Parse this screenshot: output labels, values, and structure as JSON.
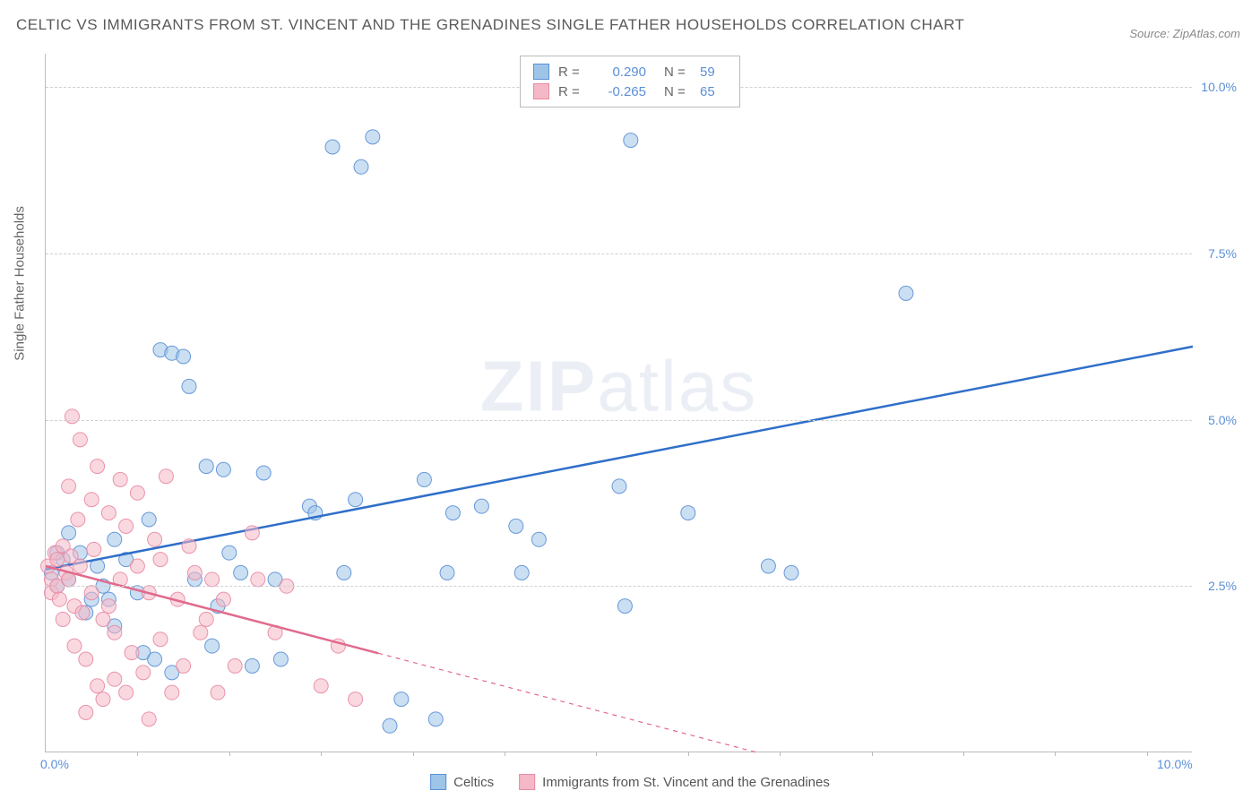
{
  "title": "CELTIC VS IMMIGRANTS FROM ST. VINCENT AND THE GRENADINES SINGLE FATHER HOUSEHOLDS CORRELATION CHART",
  "source_label": "Source: ZipAtlas.com",
  "y_axis_title": "Single Father Households",
  "watermark": {
    "prefix": "ZIP",
    "suffix": "atlas"
  },
  "chart": {
    "type": "scatter",
    "xlim": [
      0,
      10
    ],
    "ylim": [
      0,
      10.5
    ],
    "x_tick_labels": [
      {
        "x": 0,
        "label": "0.0%"
      },
      {
        "x": 10,
        "label": "10.0%"
      }
    ],
    "x_tick_marks": [
      0.8,
      1.6,
      2.4,
      3.2,
      4.0,
      4.8,
      5.6,
      6.4,
      7.2,
      8.0,
      8.8,
      9.6
    ],
    "y_tick_labels": [
      {
        "y": 2.5,
        "label": "2.5%"
      },
      {
        "y": 5.0,
        "label": "5.0%"
      },
      {
        "y": 7.5,
        "label": "7.5%"
      },
      {
        "y": 10.0,
        "label": "10.0%"
      }
    ],
    "grid_color": "#e0e0e0",
    "background_color": "#ffffff",
    "marker_radius": 8,
    "marker_opacity": 0.55,
    "marker_stroke_opacity": 0.9,
    "trend_line_width": 2.5,
    "series": [
      {
        "name": "Celtics",
        "color_fill": "#9ec5e8",
        "color_stroke": "#5b8fd6",
        "trend_color": "#2f6fc9",
        "r_value": "0.290",
        "n_value": "59",
        "trend": {
          "x1": 0,
          "y1": 2.75,
          "x2": 10,
          "y2": 6.1,
          "dashed_from_x": null
        },
        "points": [
          [
            0.05,
            2.7
          ],
          [
            0.1,
            3.0
          ],
          [
            0.1,
            2.5
          ],
          [
            0.15,
            2.9
          ],
          [
            0.2,
            2.6
          ],
          [
            0.2,
            3.3
          ],
          [
            0.3,
            3.0
          ],
          [
            0.35,
            2.1
          ],
          [
            0.4,
            2.3
          ],
          [
            0.45,
            2.8
          ],
          [
            0.5,
            2.5
          ],
          [
            0.55,
            2.3
          ],
          [
            0.6,
            3.2
          ],
          [
            0.7,
            2.9
          ],
          [
            0.8,
            2.4
          ],
          [
            0.85,
            1.5
          ],
          [
            0.9,
            3.5
          ],
          [
            1.0,
            6.05
          ],
          [
            1.1,
            6.0
          ],
          [
            1.2,
            5.95
          ],
          [
            1.25,
            5.5
          ],
          [
            1.3,
            2.6
          ],
          [
            1.4,
            4.3
          ],
          [
            1.5,
            2.2
          ],
          [
            1.55,
            4.25
          ],
          [
            1.6,
            3.0
          ],
          [
            1.7,
            2.7
          ],
          [
            1.8,
            1.3
          ],
          [
            1.9,
            4.2
          ],
          [
            2.0,
            2.6
          ],
          [
            2.05,
            1.4
          ],
          [
            2.3,
            3.7
          ],
          [
            2.35,
            3.6
          ],
          [
            2.5,
            9.1
          ],
          [
            2.6,
            2.7
          ],
          [
            2.7,
            3.8
          ],
          [
            2.75,
            8.8
          ],
          [
            2.85,
            9.25
          ],
          [
            3.0,
            0.4
          ],
          [
            3.1,
            0.8
          ],
          [
            3.3,
            4.1
          ],
          [
            3.4,
            0.5
          ],
          [
            3.5,
            2.7
          ],
          [
            3.55,
            3.6
          ],
          [
            3.8,
            3.7
          ],
          [
            4.1,
            3.4
          ],
          [
            4.15,
            2.7
          ],
          [
            4.3,
            3.2
          ],
          [
            5.0,
            4.0
          ],
          [
            5.05,
            2.2
          ],
          [
            5.1,
            9.2
          ],
          [
            5.6,
            3.6
          ],
          [
            6.3,
            2.8
          ],
          [
            6.5,
            2.7
          ],
          [
            7.5,
            6.9
          ],
          [
            0.6,
            1.9
          ],
          [
            0.95,
            1.4
          ],
          [
            1.1,
            1.2
          ],
          [
            1.45,
            1.6
          ]
        ]
      },
      {
        "name": "Immigrants from St. Vincent and the Grenadines",
        "color_fill": "#f5b8c6",
        "color_stroke": "#e88aa3",
        "trend_color": "#e06a8c",
        "r_value": "-0.265",
        "n_value": "65",
        "trend": {
          "x1": 0,
          "y1": 2.8,
          "x2": 6.2,
          "y2": 0,
          "dashed_from_x": 2.9
        },
        "points": [
          [
            0.02,
            2.8
          ],
          [
            0.05,
            2.6
          ],
          [
            0.05,
            2.4
          ],
          [
            0.08,
            3.0
          ],
          [
            0.1,
            2.9
          ],
          [
            0.1,
            2.5
          ],
          [
            0.12,
            2.3
          ],
          [
            0.15,
            3.1
          ],
          [
            0.15,
            2.0
          ],
          [
            0.18,
            2.7
          ],
          [
            0.2,
            2.6
          ],
          [
            0.2,
            4.0
          ],
          [
            0.22,
            2.95
          ],
          [
            0.23,
            5.05
          ],
          [
            0.25,
            2.2
          ],
          [
            0.25,
            1.6
          ],
          [
            0.28,
            3.5
          ],
          [
            0.3,
            4.7
          ],
          [
            0.3,
            2.8
          ],
          [
            0.32,
            2.1
          ],
          [
            0.35,
            1.4
          ],
          [
            0.35,
            0.6
          ],
          [
            0.4,
            3.8
          ],
          [
            0.4,
            2.4
          ],
          [
            0.42,
            3.05
          ],
          [
            0.45,
            1.0
          ],
          [
            0.45,
            4.3
          ],
          [
            0.5,
            2.0
          ],
          [
            0.5,
            0.8
          ],
          [
            0.55,
            3.6
          ],
          [
            0.55,
            2.2
          ],
          [
            0.6,
            1.8
          ],
          [
            0.6,
            1.1
          ],
          [
            0.65,
            4.1
          ],
          [
            0.65,
            2.6
          ],
          [
            0.7,
            0.9
          ],
          [
            0.7,
            3.4
          ],
          [
            0.75,
            1.5
          ],
          [
            0.8,
            2.8
          ],
          [
            0.8,
            3.9
          ],
          [
            0.85,
            1.2
          ],
          [
            0.9,
            2.4
          ],
          [
            0.9,
            0.5
          ],
          [
            0.95,
            3.2
          ],
          [
            1.0,
            1.7
          ],
          [
            1.0,
            2.9
          ],
          [
            1.05,
            4.15
          ],
          [
            1.1,
            0.9
          ],
          [
            1.15,
            2.3
          ],
          [
            1.2,
            1.3
          ],
          [
            1.25,
            3.1
          ],
          [
            1.3,
            2.7
          ],
          [
            1.35,
            1.8
          ],
          [
            1.4,
            2.0
          ],
          [
            1.45,
            2.6
          ],
          [
            1.5,
            0.9
          ],
          [
            1.55,
            2.3
          ],
          [
            1.65,
            1.3
          ],
          [
            1.8,
            3.3
          ],
          [
            1.85,
            2.6
          ],
          [
            2.0,
            1.8
          ],
          [
            2.1,
            2.5
          ],
          [
            2.4,
            1.0
          ],
          [
            2.55,
            1.6
          ],
          [
            2.7,
            0.8
          ]
        ]
      }
    ]
  },
  "legend_bottom": [
    {
      "label": "Celtics",
      "fill": "#9ec5e8",
      "stroke": "#5b8fd6"
    },
    {
      "label": "Immigrants from St. Vincent and the Grenadines",
      "fill": "#f5b8c6",
      "stroke": "#e88aa3"
    }
  ]
}
